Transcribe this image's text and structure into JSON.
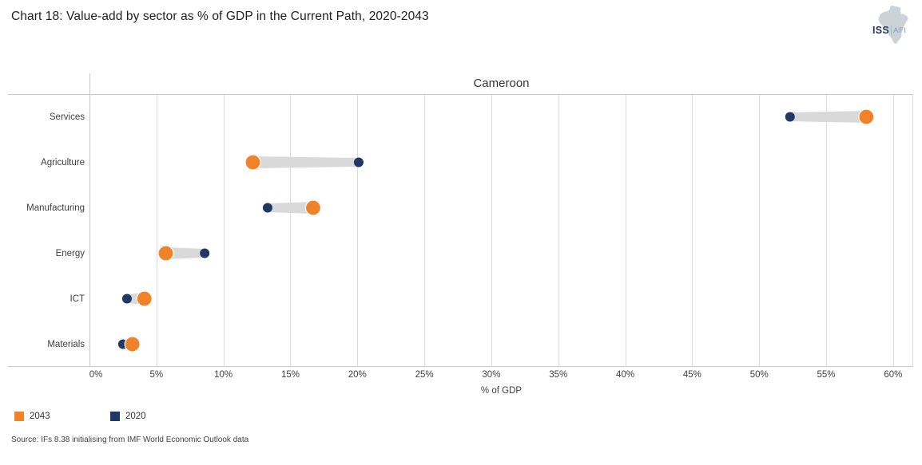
{
  "header": {
    "title": "Chart 18: Value-add by sector as % of GDP in the Current Path, 2020-2043",
    "logo": {
      "primary": "ISS",
      "secondary": "AFI"
    }
  },
  "chart_data": {
    "type": "dumbbell",
    "facet_title": "Cameroon",
    "categories": [
      "Services",
      "Agriculture",
      "Manufacturing",
      "Energy",
      "ICT",
      "Materials"
    ],
    "series": [
      {
        "name": "2043",
        "color": "#F0832A",
        "values": [
          58.0,
          12.2,
          16.7,
          5.7,
          4.1,
          3.2
        ]
      },
      {
        "name": "2020",
        "color": "#203864",
        "values": [
          52.3,
          20.1,
          13.3,
          8.6,
          2.8,
          2.5
        ]
      }
    ],
    "xlabel": "% of GDP",
    "x_ticks": [
      0,
      5,
      10,
      15,
      20,
      25,
      30,
      35,
      40,
      45,
      50,
      55,
      60
    ],
    "tick_suffix": "%",
    "xlim": [
      0,
      61.5
    ],
    "grid": "vertical",
    "legend_position": "bottom-left",
    "connector_color": "#D9D9D9"
  },
  "footer": {
    "source": "Source: IFs 8.38 initialising from IMF World Economic Outlook data"
  }
}
